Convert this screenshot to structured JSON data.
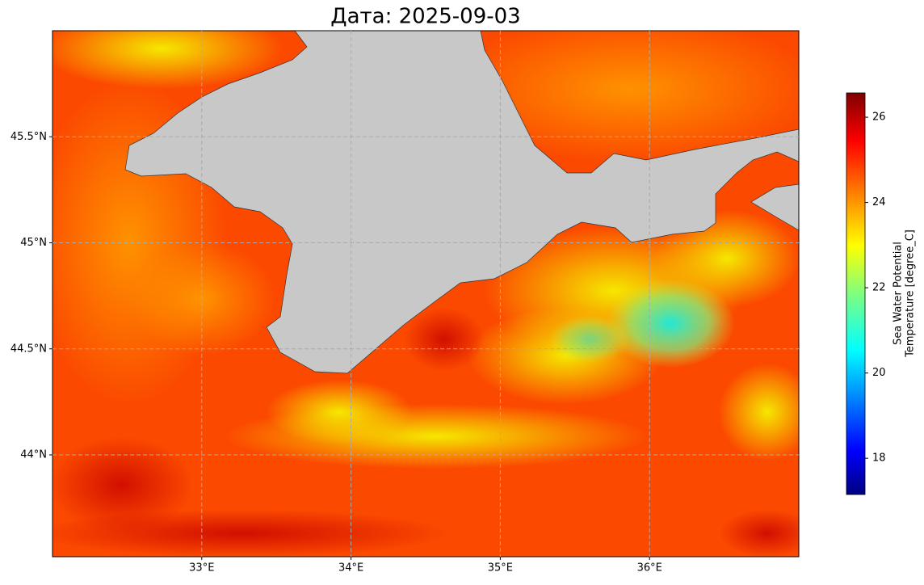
{
  "map": {
    "title": "Дата: 2025-09-03",
    "xlim": [
      32.0,
      37.0
    ],
    "ylim": [
      43.52,
      46.0
    ],
    "xticks": [
      {
        "value": 33,
        "label": "33°E"
      },
      {
        "value": 34,
        "label": "34°E"
      },
      {
        "value": 35,
        "label": "35°E"
      },
      {
        "value": 36,
        "label": "36°E"
      }
    ],
    "yticks": [
      {
        "value": 44,
        "label": "44°N"
      },
      {
        "value": 44.5,
        "label": "44.5°N"
      },
      {
        "value": 45,
        "label": "45°N"
      },
      {
        "value": 45.5,
        "label": "45.5°N"
      }
    ],
    "grid": true,
    "colorbar": {
      "label": [
        "Sea Water Potential",
        "Temperature [degree_C]"
      ],
      "lim": [
        17.15,
        26.57
      ],
      "ticks": [
        18,
        20,
        22,
        24,
        26
      ]
    }
  }
}
